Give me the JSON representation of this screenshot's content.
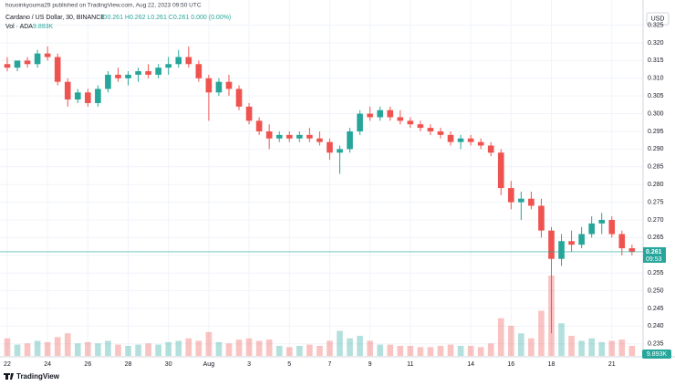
{
  "header": {
    "published": "houoinkyouma29 published on TradingView.com, Aug 22, 2023 09:50 UTC",
    "symbol": "Cardano / US Dollar, 30, BINANCE",
    "ohlc": "O0.261 H0.262 L0.261 C0.261 0.000 (0.00%)",
    "volume_title": "Vol · ADA",
    "volume_value": "9.893K",
    "currency": "USD",
    "brand": "TradingView"
  },
  "chart_data": {
    "type": "candlestick",
    "up_color": "#26a69a",
    "down_color": "#ef5350",
    "x": [
      22,
      22.5,
      23,
      23.5,
      24,
      24.5,
      25,
      25.5,
      26,
      26.5,
      27,
      27.5,
      28,
      28.5,
      29,
      29.5,
      30,
      30.5,
      31,
      31.5,
      32,
      32.5,
      33,
      33.5,
      34,
      34.5,
      35,
      35.5,
      36,
      36.5,
      37,
      37.5,
      38,
      38.5,
      39,
      39.5,
      40,
      40.5,
      41,
      41.5,
      42,
      42.5,
      43,
      43.5,
      44,
      44.5,
      45,
      45.5,
      46,
      46.5,
      47,
      47.5,
      48,
      48.5,
      49,
      49.5,
      50,
      50.5,
      51,
      51.5,
      52,
      52.5,
      53
    ],
    "open": [
      0.314,
      0.313,
      0.315,
      0.314,
      0.317,
      0.316,
      0.309,
      0.304,
      0.306,
      0.303,
      0.307,
      0.311,
      0.31,
      0.311,
      0.312,
      0.311,
      0.313,
      0.314,
      0.316,
      0.314,
      0.31,
      0.306,
      0.309,
      0.307,
      0.302,
      0.298,
      0.295,
      0.293,
      0.294,
      0.293,
      0.294,
      0.293,
      0.292,
      0.289,
      0.29,
      0.295,
      0.3,
      0.299,
      0.301,
      0.299,
      0.298,
      0.297,
      0.296,
      0.295,
      0.294,
      0.292,
      0.293,
      0.292,
      0.291,
      0.289,
      0.279,
      0.275,
      0.276,
      0.274,
      0.267,
      0.259,
      0.264,
      0.263,
      0.266,
      0.269,
      0.27,
      0.266,
      0.262
    ],
    "high": [
      0.316,
      0.315,
      0.316,
      0.318,
      0.319,
      0.317,
      0.31,
      0.307,
      0.307,
      0.308,
      0.312,
      0.313,
      0.312,
      0.313,
      0.314,
      0.314,
      0.316,
      0.318,
      0.319,
      0.315,
      0.311,
      0.31,
      0.311,
      0.308,
      0.303,
      0.299,
      0.297,
      0.295,
      0.295,
      0.295,
      0.296,
      0.295,
      0.293,
      0.291,
      0.296,
      0.301,
      0.302,
      0.302,
      0.302,
      0.301,
      0.299,
      0.298,
      0.297,
      0.296,
      0.295,
      0.294,
      0.294,
      0.293,
      0.292,
      0.29,
      0.281,
      0.278,
      0.278,
      0.276,
      0.268,
      0.266,
      0.267,
      0.268,
      0.271,
      0.272,
      0.271,
      0.267,
      0.263
    ],
    "low": [
      0.312,
      0.312,
      0.313,
      0.313,
      0.315,
      0.308,
      0.302,
      0.303,
      0.302,
      0.302,
      0.306,
      0.309,
      0.308,
      0.309,
      0.31,
      0.31,
      0.311,
      0.313,
      0.313,
      0.309,
      0.298,
      0.305,
      0.305,
      0.301,
      0.297,
      0.294,
      0.29,
      0.292,
      0.292,
      0.292,
      0.292,
      0.291,
      0.287,
      0.283,
      0.289,
      0.294,
      0.298,
      0.298,
      0.298,
      0.297,
      0.296,
      0.295,
      0.294,
      0.293,
      0.291,
      0.29,
      0.291,
      0.29,
      0.288,
      0.277,
      0.273,
      0.27,
      0.273,
      0.265,
      0.238,
      0.257,
      0.261,
      0.262,
      0.265,
      0.266,
      0.265,
      0.26,
      0.26
    ],
    "close": [
      0.313,
      0.315,
      0.314,
      0.317,
      0.316,
      0.309,
      0.304,
      0.306,
      0.303,
      0.307,
      0.311,
      0.31,
      0.311,
      0.312,
      0.311,
      0.313,
      0.314,
      0.316,
      0.314,
      0.31,
      0.306,
      0.309,
      0.307,
      0.302,
      0.298,
      0.295,
      0.293,
      0.294,
      0.293,
      0.294,
      0.293,
      0.292,
      0.289,
      0.29,
      0.295,
      0.3,
      0.299,
      0.301,
      0.299,
      0.298,
      0.297,
      0.296,
      0.295,
      0.294,
      0.292,
      0.293,
      0.292,
      0.291,
      0.289,
      0.279,
      0.275,
      0.276,
      0.274,
      0.267,
      0.259,
      0.264,
      0.263,
      0.266,
      0.269,
      0.27,
      0.266,
      0.262,
      0.261
    ],
    "volume": [
      70000,
      45000,
      50000,
      60000,
      55000,
      75000,
      90000,
      50000,
      55000,
      50000,
      60000,
      45000,
      40000,
      45000,
      50000,
      45000,
      55000,
      60000,
      70000,
      60000,
      95000,
      55000,
      50000,
      65000,
      70000,
      60000,
      65000,
      40000,
      35000,
      40000,
      45000,
      40000,
      60000,
      100000,
      70000,
      80000,
      60000,
      45000,
      45000,
      40000,
      40000,
      35000,
      35000,
      40000,
      45000,
      40000,
      40000,
      35000,
      50000,
      150000,
      120000,
      90000,
      70000,
      180000,
      320000,
      130000,
      80000,
      60000,
      70000,
      55000,
      60000,
      65000,
      40000
    ],
    "vlim": [
      0,
      400000
    ],
    "xlim": [
      21.64,
      53.55
    ],
    "xticks": [
      22,
      24,
      26,
      28,
      30,
      {
        "value": 32,
        "label": "Aug"
      },
      {
        "value": 34,
        "label": "3"
      },
      {
        "value": 36,
        "label": "5"
      },
      {
        "value": 38,
        "label": "7"
      },
      {
        "value": 40,
        "label": "9"
      },
      {
        "value": 42,
        "label": "11"
      },
      {
        "value": 45,
        "label": "14"
      },
      {
        "value": 47,
        "label": "16"
      },
      {
        "value": 49,
        "label": "18"
      },
      {
        "value": 52,
        "label": "21"
      }
    ],
    "ylim": [
      0.2316,
      0.3285
    ],
    "yticks": [
      0.235,
      {
        "value": 0.24,
        "label": "0.240"
      },
      0.245,
      {
        "value": 0.25,
        "label": "0.250"
      },
      0.255,
      {
        "value": 0.26,
        "label": "0.260"
      },
      0.265,
      {
        "value": 0.27,
        "label": "0.270"
      },
      0.275,
      {
        "value": 0.28,
        "label": "0.280"
      },
      0.285,
      {
        "value": 0.29,
        "label": "0.290"
      },
      0.295,
      {
        "value": 0.3,
        "label": "0.300"
      },
      0.305,
      {
        "value": 0.31,
        "label": "0.310"
      },
      0.315,
      {
        "value": 0.32,
        "label": "0.320"
      },
      0.325
    ],
    "grid": true,
    "last_price": 0.261,
    "countdown": "09:53"
  }
}
